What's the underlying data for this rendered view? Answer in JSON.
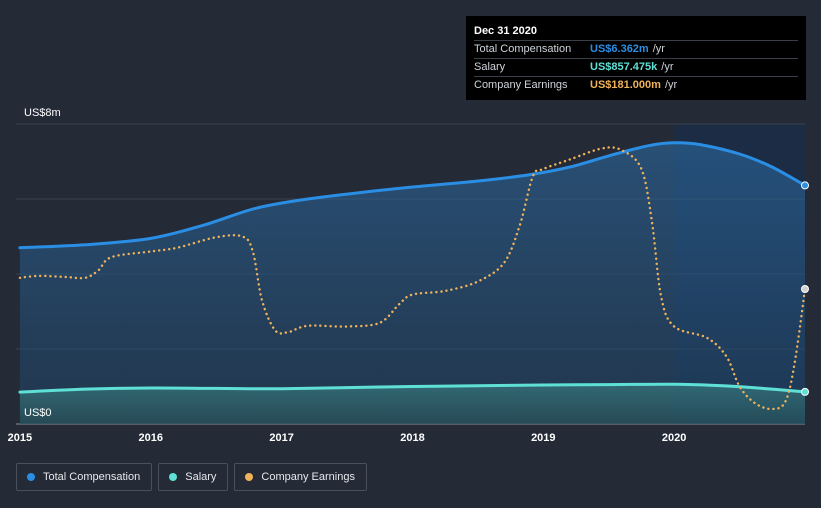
{
  "tooltip": {
    "date": "Dec 31 2020",
    "rows": [
      {
        "label": "Total Compensation",
        "value": "US$6.362m",
        "unit": "/yr",
        "color": "#2b8ee5"
      },
      {
        "label": "Salary",
        "value": "US$857.475k",
        "unit": "/yr",
        "color": "#5fe0d6"
      },
      {
        "label": "Company Earnings",
        "value": "US$181.000m",
        "unit": "/yr",
        "color": "#f0b35a"
      }
    ]
  },
  "legend": [
    {
      "label": "Total Compensation",
      "color": "#2b8ee5"
    },
    {
      "label": "Salary",
      "color": "#5fe0d6"
    },
    {
      "label": "Company Earnings",
      "color": "#f0b35a"
    }
  ],
  "chart_data": {
    "type": "line",
    "title": "",
    "xlabel": "",
    "ylabel": "",
    "y_top_label": "US$8m",
    "y_bottom_label": "US$0",
    "xlim": [
      2014.97,
      2021.0
    ],
    "ylim": [
      0,
      8
    ],
    "x_ticks": [
      2015,
      2016,
      2017,
      2018,
      2019,
      2020
    ],
    "x_tick_labels": [
      "2015",
      "2016",
      "2017",
      "2018",
      "2019",
      "2020"
    ],
    "highlight_from": 2020.0,
    "grid": true,
    "legend_position": "bottom-left",
    "series": [
      {
        "name": "Total Compensation",
        "color": "#2b8ee5",
        "style": "solid",
        "area": true,
        "points": [
          [
            2015.0,
            4.7
          ],
          [
            2015.5,
            4.78
          ],
          [
            2016.0,
            4.95
          ],
          [
            2016.4,
            5.3
          ],
          [
            2016.8,
            5.75
          ],
          [
            2017.2,
            6.0
          ],
          [
            2017.6,
            6.17
          ],
          [
            2018.0,
            6.32
          ],
          [
            2018.5,
            6.48
          ],
          [
            2018.9,
            6.65
          ],
          [
            2019.2,
            6.85
          ],
          [
            2019.5,
            7.15
          ],
          [
            2019.8,
            7.42
          ],
          [
            2020.0,
            7.5
          ],
          [
            2020.2,
            7.45
          ],
          [
            2020.5,
            7.2
          ],
          [
            2020.75,
            6.85
          ],
          [
            2021.0,
            6.362
          ]
        ]
      },
      {
        "name": "Salary",
        "color": "#5fe0d6",
        "style": "solid",
        "area": true,
        "points": [
          [
            2015.0,
            0.85
          ],
          [
            2015.5,
            0.93
          ],
          [
            2016.0,
            0.96
          ],
          [
            2016.5,
            0.95
          ],
          [
            2017.0,
            0.94
          ],
          [
            2017.5,
            0.97
          ],
          [
            2018.0,
            1.0
          ],
          [
            2018.5,
            1.02
          ],
          [
            2019.0,
            1.04
          ],
          [
            2019.5,
            1.05
          ],
          [
            2020.0,
            1.06
          ],
          [
            2020.3,
            1.03
          ],
          [
            2020.6,
            0.97
          ],
          [
            2021.0,
            0.857
          ]
        ]
      },
      {
        "name": "Company Earnings",
        "color": "#f0b35a",
        "style": "dotted",
        "area": false,
        "points": [
          [
            2015.0,
            3.9
          ],
          [
            2015.15,
            3.95
          ],
          [
            2015.35,
            3.92
          ],
          [
            2015.5,
            3.9
          ],
          [
            2015.6,
            4.1
          ],
          [
            2015.7,
            4.45
          ],
          [
            2016.0,
            4.6
          ],
          [
            2016.2,
            4.7
          ],
          [
            2016.5,
            4.98
          ],
          [
            2016.7,
            5.0
          ],
          [
            2016.78,
            4.6
          ],
          [
            2016.85,
            3.3
          ],
          [
            2016.95,
            2.5
          ],
          [
            2017.05,
            2.45
          ],
          [
            2017.2,
            2.62
          ],
          [
            2017.5,
            2.6
          ],
          [
            2017.75,
            2.7
          ],
          [
            2017.9,
            3.2
          ],
          [
            2018.0,
            3.45
          ],
          [
            2018.25,
            3.55
          ],
          [
            2018.5,
            3.8
          ],
          [
            2018.7,
            4.3
          ],
          [
            2018.82,
            5.3
          ],
          [
            2018.92,
            6.6
          ],
          [
            2019.0,
            6.8
          ],
          [
            2019.2,
            7.05
          ],
          [
            2019.45,
            7.35
          ],
          [
            2019.6,
            7.3
          ],
          [
            2019.75,
            6.8
          ],
          [
            2019.83,
            5.4
          ],
          [
            2019.9,
            3.4
          ],
          [
            2020.0,
            2.6
          ],
          [
            2020.25,
            2.3
          ],
          [
            2020.4,
            1.8
          ],
          [
            2020.5,
            1.0
          ],
          [
            2020.62,
            0.55
          ],
          [
            2020.75,
            0.4
          ],
          [
            2020.85,
            0.6
          ],
          [
            2020.92,
            1.6
          ],
          [
            2021.0,
            3.6
          ]
        ]
      }
    ]
  }
}
